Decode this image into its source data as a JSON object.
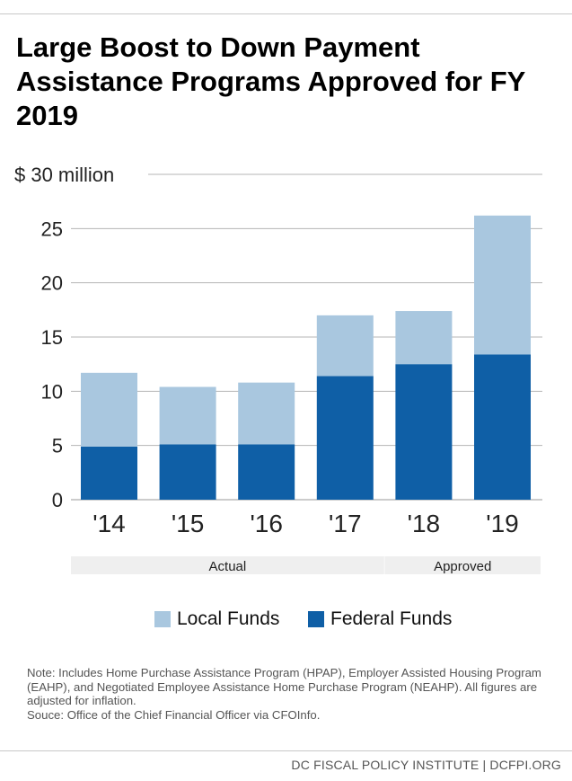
{
  "title": "Large Boost to Down Payment Assistance Programs Approved for FY 2019",
  "chart_data": {
    "type": "bar",
    "stacked": true,
    "categories": [
      "'14",
      "'15",
      "'16",
      "'17",
      "'18",
      "'19"
    ],
    "series": [
      {
        "name": "Federal Funds",
        "color": "#0f5fa6",
        "values": [
          4.9,
          5.1,
          5.1,
          11.4,
          12.5,
          13.4
        ]
      },
      {
        "name": "Local Funds",
        "color": "#a9c7df",
        "values": [
          6.8,
          5.3,
          5.7,
          5.6,
          4.9,
          12.8
        ]
      }
    ],
    "ylim": [
      0,
      30
    ],
    "yticks": [
      0,
      5,
      10,
      15,
      20,
      25,
      30
    ],
    "ytick_labels": [
      "0",
      "5",
      "10",
      "15",
      "20",
      "25",
      "$ 30 million"
    ],
    "grid": true,
    "category_groups": [
      {
        "label": "Actual",
        "categories": [
          "'14",
          "'15",
          "'16",
          "'17"
        ]
      },
      {
        "label": "Approved",
        "categories": [
          "'18",
          "'19"
        ]
      }
    ],
    "legend_position": "bottom"
  },
  "legend": [
    {
      "label": "Local Funds",
      "color": "#a9c7df"
    },
    {
      "label": "Federal Funds",
      "color": "#0f5fa6"
    }
  ],
  "note": "Note: Includes Home Purchase Assistance Program (HPAP), Employer Assisted Housing Program (EAHP), and Negotiated Employee Assistance Home Purchase Program (NEAHP). All figures are adjusted for inflation.",
  "source": "Souce: Office of the Chief Financial Officer via CFOInfo.",
  "footer": "DC FISCAL POLICY INSTITUTE | DCFPI.ORG"
}
